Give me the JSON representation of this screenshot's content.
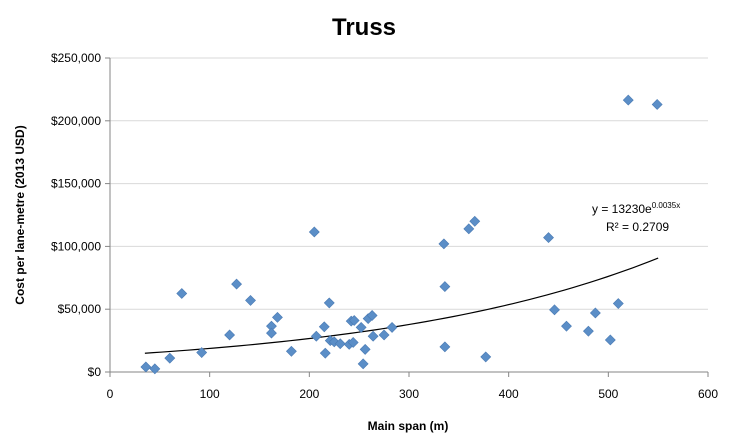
{
  "chart_data": {
    "type": "scatter",
    "title": "Truss",
    "xlabel": "Main span (m)",
    "ylabel": "Cost per lane-metre (2013 USD)",
    "xlim": [
      0,
      600
    ],
    "ylim": [
      0,
      250000
    ],
    "xticks": [
      0,
      100,
      200,
      300,
      400,
      500,
      600
    ],
    "yticks": [
      0,
      50000,
      100000,
      150000,
      200000,
      250000
    ],
    "xtick_labels": [
      "0",
      "100",
      "200",
      "300",
      "400",
      "500",
      "600"
    ],
    "ytick_labels": [
      "$0",
      "$50,000",
      "$100,000",
      "$150,000",
      "$200,000",
      "$250,000"
    ],
    "grid": "horizontal",
    "marker_color": "#5b8ec7",
    "trendline": {
      "type": "exponential",
      "a": 13230,
      "b": 0.0035,
      "x_range": [
        35,
        550
      ],
      "equation_main": "y = 13230e",
      "equation_exp": "0.0035x",
      "r_squared_label": "R² = 0.2709"
    },
    "points": [
      [
        36,
        4000
      ],
      [
        45,
        2500
      ],
      [
        60,
        11000
      ],
      [
        72,
        62500
      ],
      [
        92,
        15500
      ],
      [
        120,
        29500
      ],
      [
        127,
        70000
      ],
      [
        141,
        57000
      ],
      [
        162,
        36500
      ],
      [
        162,
        31000
      ],
      [
        168,
        43500
      ],
      [
        182,
        16500
      ],
      [
        205,
        111500
      ],
      [
        207,
        28500
      ],
      [
        215,
        36000
      ],
      [
        216,
        15000
      ],
      [
        220,
        55000
      ],
      [
        221,
        25000
      ],
      [
        225,
        24000
      ],
      [
        231,
        22500
      ],
      [
        240,
        22000
      ],
      [
        242,
        40500
      ],
      [
        244,
        23500
      ],
      [
        245,
        41000
      ],
      [
        252,
        35500
      ],
      [
        254,
        6500
      ],
      [
        256,
        18000
      ],
      [
        259,
        42500
      ],
      [
        263,
        45000
      ],
      [
        264,
        28500
      ],
      [
        275,
        29500
      ],
      [
        283,
        35500
      ],
      [
        335,
        102000
      ],
      [
        336,
        68000
      ],
      [
        336,
        20000
      ],
      [
        360,
        114000
      ],
      [
        366,
        120000
      ],
      [
        377,
        12000
      ],
      [
        440,
        107000
      ],
      [
        446,
        49500
      ],
      [
        458,
        36500
      ],
      [
        480,
        32500
      ],
      [
        487,
        47000
      ],
      [
        502,
        25500
      ],
      [
        510,
        54500
      ],
      [
        520,
        216500
      ],
      [
        549,
        213000
      ]
    ]
  }
}
